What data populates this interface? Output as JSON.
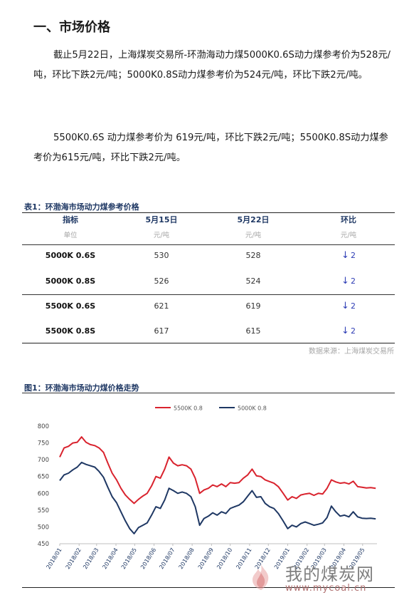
{
  "section_title": "一、市场价格",
  "paragraph1": "截止5月22日，上海煤炭交易所-环渤海动力煤5000K0.6S动力煤参考价为528元/吨，环比下跌2元/吨；5000K0.8S动力煤参考价为524元/吨，环比下跌2元/吨。",
  "paragraph2": "5500K0.6S 动力煤参考价为 619元/吨，环比下跌2元/吨；5500K0.8S动力煤参考价为615元/吨，环比下跌2元/吨。",
  "table": {
    "caption": "表1：环渤海市场动力煤参考价格",
    "headers": [
      "指标",
      "5月15日",
      "5月22日",
      "环比"
    ],
    "units": [
      "单位",
      "元/吨",
      "元/吨",
      "元/吨"
    ],
    "rows": [
      {
        "name": "5000K 0.6S",
        "may15": "530",
        "may22": "528",
        "arrow": "↓",
        "change": "2"
      },
      {
        "name": "5000K 0.8S",
        "may15": "526",
        "may22": "524",
        "arrow": "↓",
        "change": "2"
      },
      {
        "name": "5500K 0.6S",
        "may15": "621",
        "may22": "619",
        "arrow": "↓",
        "change": "2"
      },
      {
        "name": "5500K 0.8S",
        "may15": "617",
        "may22": "615",
        "arrow": "↓",
        "change": "2"
      }
    ],
    "source": "数据来源：上海煤炭交易所"
  },
  "figure_caption": "图1：环渤海市场动力煤价格走势",
  "watermark": {
    "name": "我的煤炭网",
    "url": "www.mycoal.cn"
  },
  "chart_data": {
    "type": "line",
    "title": "",
    "xlabel": "",
    "ylabel": "",
    "ylim": [
      450,
      800
    ],
    "yticks": [
      450,
      500,
      550,
      600,
      650,
      700,
      750,
      800
    ],
    "legend_position": "top-center",
    "grid": false,
    "x_tick_labels": [
      "2018/01",
      "2018/02",
      "2018/03",
      "2018/04",
      "2018/05",
      "2018/06",
      "2018/07",
      "2018/08",
      "2018/09",
      "2018/10",
      "2018/11",
      "2018/12",
      "2019/01",
      "2019/02",
      "2019/03",
      "2019/04",
      "2019/05"
    ],
    "series": [
      {
        "name": "5500K 0.8",
        "color": "#d9232e",
        "points": [
          [
            "2018/01/01",
            708
          ],
          [
            "2018/01/08",
            735
          ],
          [
            "2018/01/15",
            740
          ],
          [
            "2018/01/22",
            750
          ],
          [
            "2018/01/29",
            752
          ],
          [
            "2018/02/05",
            768
          ],
          [
            "2018/02/12",
            752
          ],
          [
            "2018/02/19",
            745
          ],
          [
            "2018/02/26",
            742
          ],
          [
            "2018/03/05",
            735
          ],
          [
            "2018/03/12",
            722
          ],
          [
            "2018/03/19",
            690
          ],
          [
            "2018/03/26",
            660
          ],
          [
            "2018/04/02",
            640
          ],
          [
            "2018/04/09",
            615
          ],
          [
            "2018/04/16",
            595
          ],
          [
            "2018/04/23",
            582
          ],
          [
            "2018/04/30",
            570
          ],
          [
            "2018/05/07",
            582
          ],
          [
            "2018/05/14",
            592
          ],
          [
            "2018/05/21",
            600
          ],
          [
            "2018/05/28",
            622
          ],
          [
            "2018/06/04",
            650
          ],
          [
            "2018/06/11",
            645
          ],
          [
            "2018/06/18",
            672
          ],
          [
            "2018/06/25",
            708
          ],
          [
            "2018/07/02",
            690
          ],
          [
            "2018/07/09",
            682
          ],
          [
            "2018/07/16",
            685
          ],
          [
            "2018/07/23",
            682
          ],
          [
            "2018/07/30",
            672
          ],
          [
            "2018/08/06",
            645
          ],
          [
            "2018/08/13",
            600
          ],
          [
            "2018/08/20",
            610
          ],
          [
            "2018/08/27",
            615
          ],
          [
            "2018/09/03",
            625
          ],
          [
            "2018/09/10",
            620
          ],
          [
            "2018/09/17",
            628
          ],
          [
            "2018/09/24",
            620
          ],
          [
            "2018/10/01",
            632
          ],
          [
            "2018/10/08",
            630
          ],
          [
            "2018/10/15",
            632
          ],
          [
            "2018/10/22",
            645
          ],
          [
            "2018/10/29",
            655
          ],
          [
            "2018/11/05",
            672
          ],
          [
            "2018/11/12",
            652
          ],
          [
            "2018/11/19",
            650
          ],
          [
            "2018/11/26",
            640
          ],
          [
            "2018/12/03",
            635
          ],
          [
            "2018/12/10",
            630
          ],
          [
            "2018/12/17",
            620
          ],
          [
            "2018/12/24",
            602
          ],
          [
            "2019/01/01",
            580
          ],
          [
            "2019/01/08",
            590
          ],
          [
            "2019/01/15",
            585
          ],
          [
            "2019/01/22",
            595
          ],
          [
            "2019/01/29",
            598
          ],
          [
            "2019/02/05",
            600
          ],
          [
            "2019/02/12",
            594
          ],
          [
            "2019/02/19",
            600
          ],
          [
            "2019/02/26",
            598
          ],
          [
            "2019/03/05",
            615
          ],
          [
            "2019/03/12",
            640
          ],
          [
            "2019/03/19",
            634
          ],
          [
            "2019/03/26",
            630
          ],
          [
            "2019/04/02",
            632
          ],
          [
            "2019/04/09",
            628
          ],
          [
            "2019/04/16",
            636
          ],
          [
            "2019/04/23",
            620
          ],
          [
            "2019/04/30",
            618
          ],
          [
            "2019/05/07",
            616
          ],
          [
            "2019/05/14",
            617
          ],
          [
            "2019/05/22",
            615
          ]
        ]
      },
      {
        "name": "5000K 0.8",
        "color": "#1f3864",
        "points": [
          [
            "2018/01/01",
            638
          ],
          [
            "2018/01/08",
            655
          ],
          [
            "2018/01/15",
            660
          ],
          [
            "2018/01/22",
            670
          ],
          [
            "2018/01/29",
            678
          ],
          [
            "2018/02/05",
            692
          ],
          [
            "2018/02/12",
            686
          ],
          [
            "2018/02/19",
            682
          ],
          [
            "2018/02/26",
            678
          ],
          [
            "2018/03/05",
            665
          ],
          [
            "2018/03/12",
            648
          ],
          [
            "2018/03/19",
            618
          ],
          [
            "2018/03/26",
            590
          ],
          [
            "2018/04/02",
            572
          ],
          [
            "2018/04/09",
            545
          ],
          [
            "2018/04/16",
            518
          ],
          [
            "2018/04/23",
            495
          ],
          [
            "2018/04/30",
            480
          ],
          [
            "2018/05/07",
            498
          ],
          [
            "2018/05/14",
            505
          ],
          [
            "2018/05/21",
            512
          ],
          [
            "2018/05/28",
            535
          ],
          [
            "2018/06/04",
            560
          ],
          [
            "2018/06/11",
            555
          ],
          [
            "2018/06/18",
            580
          ],
          [
            "2018/06/25",
            615
          ],
          [
            "2018/07/02",
            608
          ],
          [
            "2018/07/09",
            600
          ],
          [
            "2018/07/16",
            604
          ],
          [
            "2018/07/23",
            600
          ],
          [
            "2018/07/30",
            590
          ],
          [
            "2018/08/06",
            560
          ],
          [
            "2018/08/13",
            505
          ],
          [
            "2018/08/20",
            525
          ],
          [
            "2018/08/27",
            532
          ],
          [
            "2018/09/03",
            542
          ],
          [
            "2018/09/10",
            535
          ],
          [
            "2018/09/17",
            545
          ],
          [
            "2018/09/24",
            540
          ],
          [
            "2018/10/01",
            555
          ],
          [
            "2018/10/08",
            560
          ],
          [
            "2018/10/15",
            565
          ],
          [
            "2018/10/22",
            575
          ],
          [
            "2018/10/29",
            592
          ],
          [
            "2018/11/05",
            608
          ],
          [
            "2018/11/12",
            588
          ],
          [
            "2018/11/19",
            590
          ],
          [
            "2018/11/26",
            570
          ],
          [
            "2018/12/03",
            560
          ],
          [
            "2018/12/10",
            555
          ],
          [
            "2018/12/17",
            540
          ],
          [
            "2018/12/24",
            520
          ],
          [
            "2019/01/01",
            495
          ],
          [
            "2019/01/08",
            505
          ],
          [
            "2019/01/15",
            500
          ],
          [
            "2019/01/22",
            510
          ],
          [
            "2019/01/29",
            515
          ],
          [
            "2019/02/05",
            510
          ],
          [
            "2019/02/12",
            505
          ],
          [
            "2019/02/19",
            508
          ],
          [
            "2019/02/26",
            512
          ],
          [
            "2019/03/05",
            528
          ],
          [
            "2019/03/12",
            562
          ],
          [
            "2019/03/19",
            545
          ],
          [
            "2019/03/26",
            532
          ],
          [
            "2019/04/02",
            535
          ],
          [
            "2019/04/09",
            530
          ],
          [
            "2019/04/16",
            545
          ],
          [
            "2019/04/23",
            530
          ],
          [
            "2019/04/30",
            526
          ],
          [
            "2019/05/07",
            525
          ],
          [
            "2019/05/14",
            526
          ],
          [
            "2019/05/22",
            524
          ]
        ]
      }
    ]
  }
}
